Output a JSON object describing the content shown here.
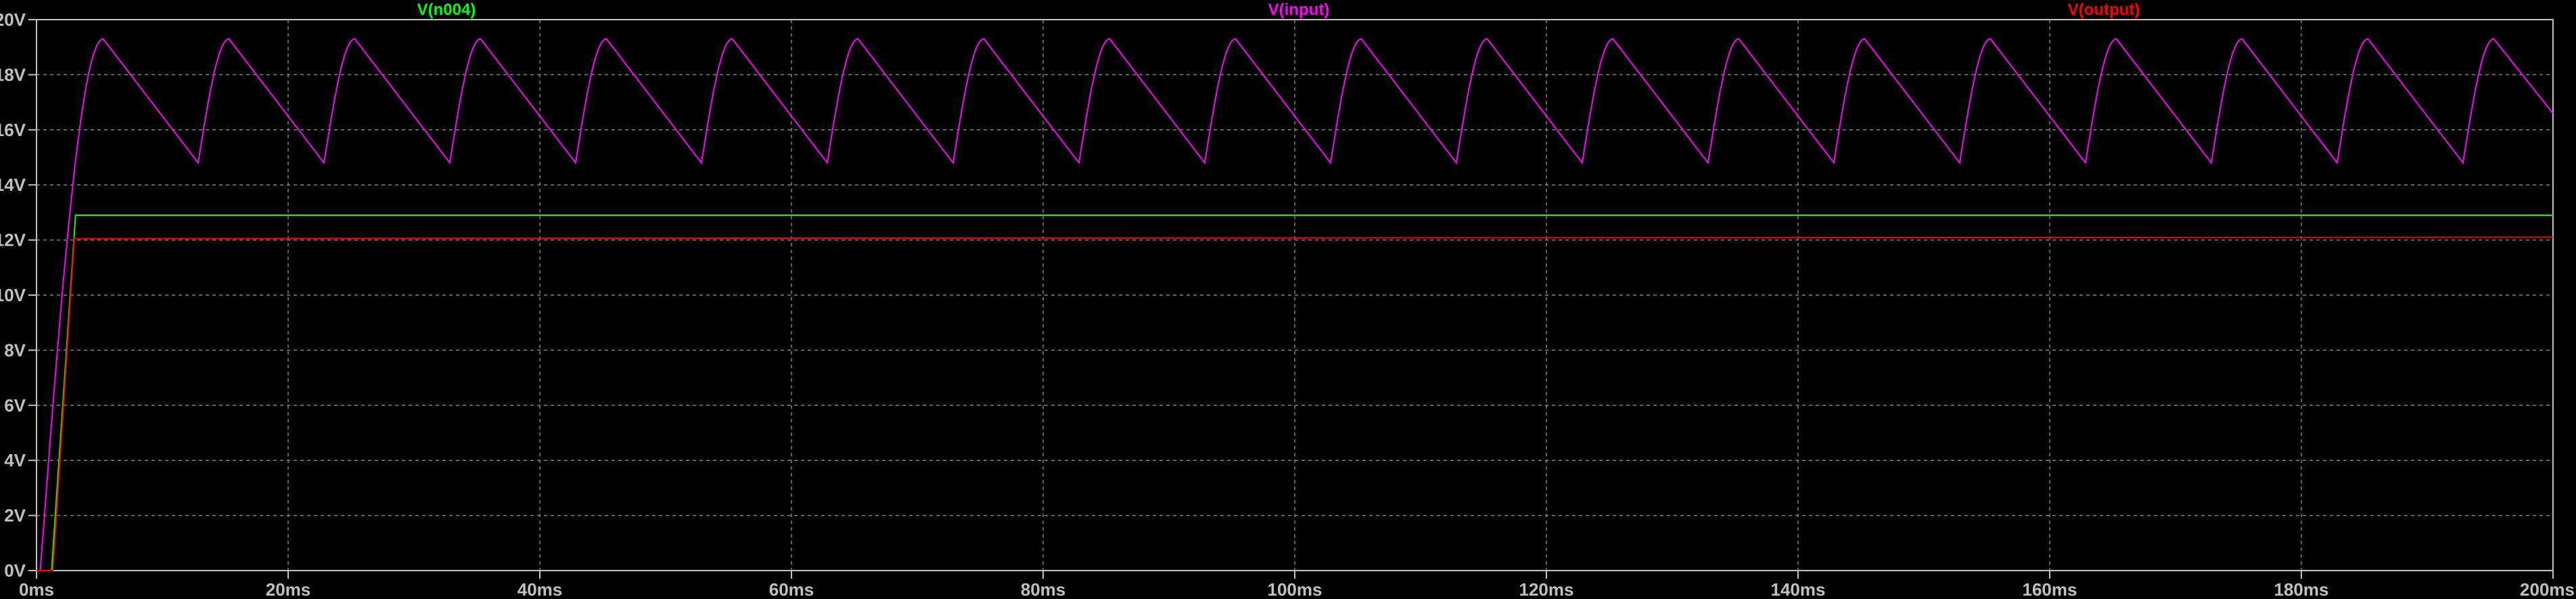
{
  "chart_data": {
    "type": "line",
    "title": "",
    "xlabel": "",
    "ylabel": "",
    "xlim": [
      0,
      200
    ],
    "ylim": [
      0,
      20
    ],
    "x_unit": "ms",
    "y_unit": "V",
    "grid": true,
    "background": "#000000",
    "x_ticks": [
      "0ms",
      "20ms",
      "40ms",
      "60ms",
      "80ms",
      "100ms",
      "120ms",
      "140ms",
      "160ms",
      "180ms",
      "200ms"
    ],
    "x_tick_values": [
      0,
      20,
      40,
      60,
      80,
      100,
      120,
      140,
      160,
      180,
      200
    ],
    "y_ticks": [
      "0V",
      "2V",
      "4V",
      "6V",
      "8V",
      "10V",
      "12V",
      "14V",
      "16V",
      "18V",
      "20V"
    ],
    "y_tick_values": [
      0,
      2,
      4,
      6,
      8,
      10,
      12,
      14,
      16,
      18,
      20
    ],
    "series": [
      {
        "name": "V(n004)",
        "color": "#00ff00",
        "points": [
          [
            0,
            0
          ],
          [
            1.2,
            0
          ],
          [
            3.1,
            12.9
          ],
          [
            200,
            12.9
          ]
        ]
      },
      {
        "name": "V(input)",
        "color": "#ff00ff",
        "points": [
          [
            0,
            0
          ],
          [
            0.3,
            0
          ],
          [
            5.3,
            19.3
          ],
          [
            12.85,
            14.8
          ],
          [
            15.3,
            19.3
          ],
          [
            22.85,
            14.8
          ],
          [
            25.3,
            19.3
          ],
          [
            32.85,
            14.8
          ],
          [
            35.3,
            19.3
          ],
          [
            42.85,
            14.8
          ],
          [
            45.3,
            19.3
          ],
          [
            52.85,
            14.8
          ],
          [
            55.3,
            19.3
          ],
          [
            62.85,
            14.8
          ],
          [
            65.3,
            19.3
          ],
          [
            72.85,
            14.8
          ],
          [
            75.3,
            19.3
          ],
          [
            82.85,
            14.8
          ],
          [
            85.3,
            19.3
          ],
          [
            92.85,
            14.8
          ],
          [
            95.3,
            19.3
          ],
          [
            102.85,
            14.8
          ],
          [
            105.3,
            19.3
          ],
          [
            112.85,
            14.8
          ],
          [
            115.3,
            19.3
          ],
          [
            122.85,
            14.8
          ],
          [
            125.3,
            19.3
          ],
          [
            132.85,
            14.8
          ],
          [
            135.3,
            19.3
          ],
          [
            142.85,
            14.8
          ],
          [
            145.3,
            19.3
          ],
          [
            152.85,
            14.8
          ],
          [
            155.3,
            19.3
          ],
          [
            162.85,
            14.8
          ],
          [
            165.3,
            19.3
          ],
          [
            172.85,
            14.8
          ],
          [
            175.3,
            19.3
          ],
          [
            182.85,
            14.8
          ],
          [
            185.3,
            19.3
          ],
          [
            192.85,
            14.8
          ],
          [
            195.3,
            19.3
          ],
          [
            200,
            16.6
          ]
        ]
      },
      {
        "name": "V(output)",
        "color": "#ff0000",
        "points": [
          [
            0,
            0
          ],
          [
            1.3,
            0
          ],
          [
            3.0,
            12.05
          ],
          [
            200,
            12.1
          ]
        ]
      }
    ]
  }
}
